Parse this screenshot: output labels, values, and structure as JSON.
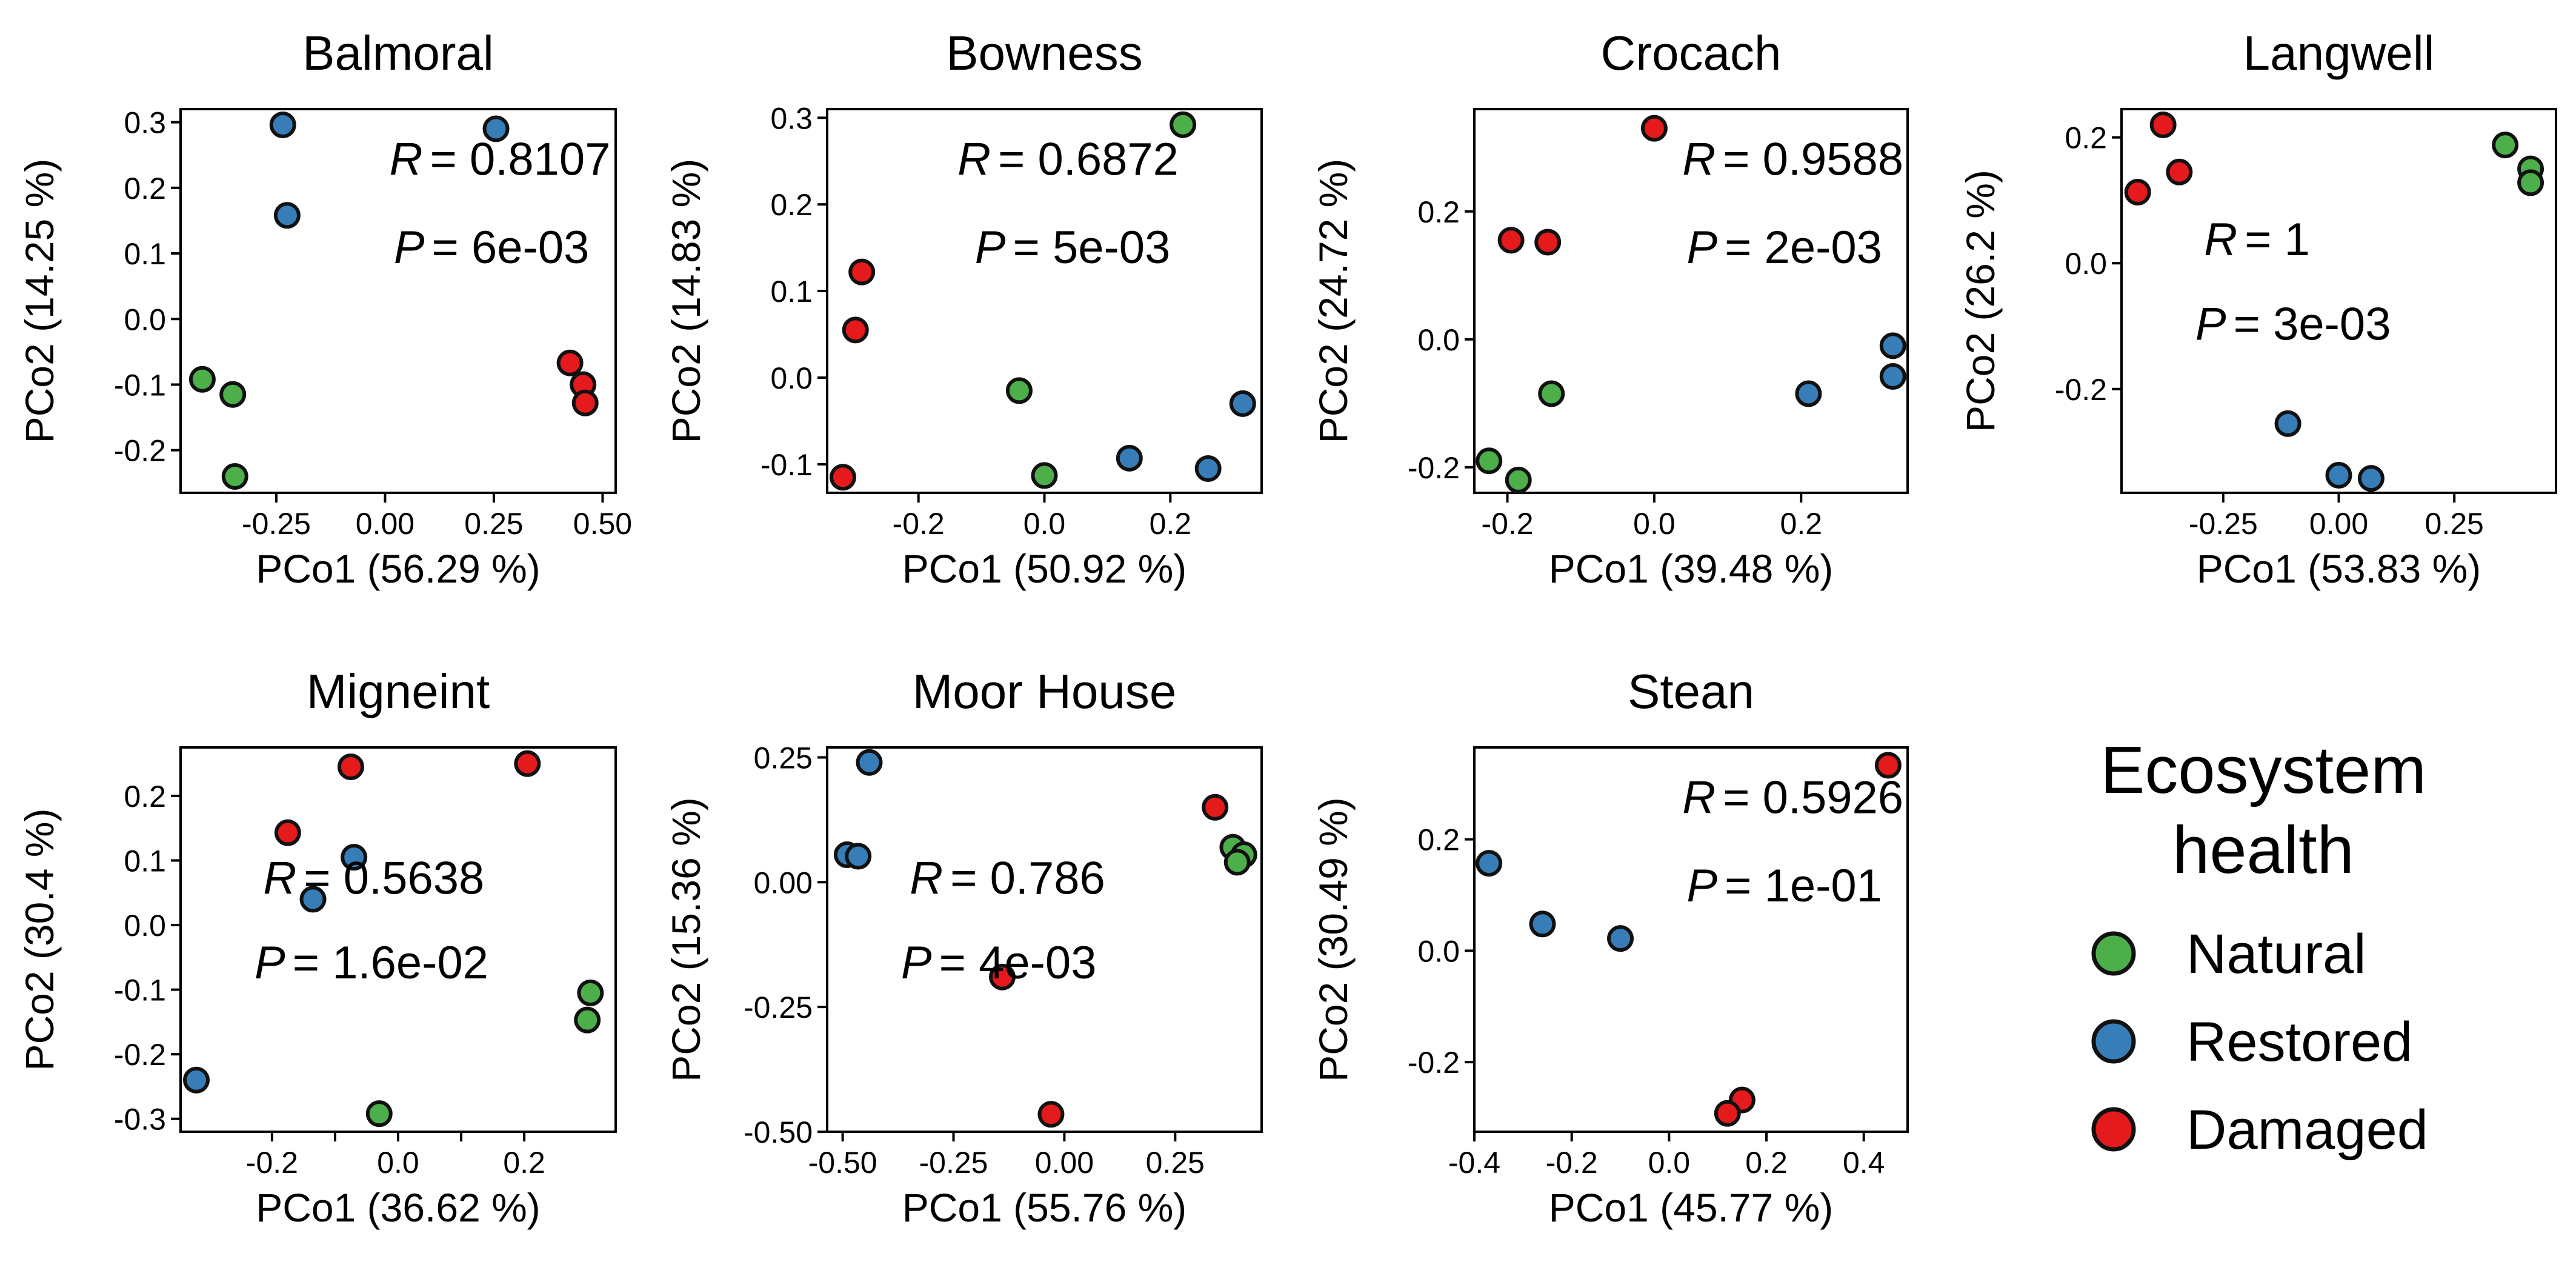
{
  "chart_data": [
    {
      "type": "scatter",
      "title": "Balmoral",
      "xlabel": "PCo1 (56.29 %)",
      "ylabel": "PCo2 (14.25 %)",
      "xlim": [
        -0.47,
        0.53
      ],
      "ylim": [
        -0.265,
        0.32
      ],
      "xticks": [
        -0.25,
        0.0,
        0.25,
        0.5
      ],
      "xtick_labels": [
        "-0.25",
        "0.00",
        "0.25",
        "0.50"
      ],
      "yticks": [
        -0.2,
        -0.1,
        0.0,
        0.1,
        0.2,
        0.3
      ],
      "ytick_labels": [
        "-0.2",
        "-0.1",
        "0.0",
        "0.1",
        "0.2",
        "0.3"
      ],
      "stats": {
        "r": "= 0.8107",
        "p": "= 6e-03"
      },
      "stats_pos": "top-right",
      "points": [
        {
          "x": -0.42,
          "y": -0.092,
          "group": "Natural"
        },
        {
          "x": -0.35,
          "y": -0.115,
          "group": "Natural"
        },
        {
          "x": -0.345,
          "y": -0.24,
          "group": "Natural"
        },
        {
          "x": -0.235,
          "y": 0.296,
          "group": "Restored"
        },
        {
          "x": -0.225,
          "y": 0.158,
          "group": "Restored"
        },
        {
          "x": 0.255,
          "y": 0.29,
          "group": "Restored"
        },
        {
          "x": 0.425,
          "y": -0.067,
          "group": "Damaged"
        },
        {
          "x": 0.455,
          "y": -0.1,
          "group": "Damaged"
        },
        {
          "x": 0.46,
          "y": -0.128,
          "group": "Damaged"
        }
      ]
    },
    {
      "type": "scatter",
      "title": "Bowness",
      "xlabel": "PCo1 (50.92 %)",
      "ylabel": "PCo2 (14.83 %)",
      "xlim": [
        -0.345,
        0.345
      ],
      "ylim": [
        -0.133,
        0.31
      ],
      "xticks": [
        -0.2,
        0.0,
        0.2
      ],
      "xtick_labels": [
        "-0.2",
        "0.0",
        "0.2"
      ],
      "yticks": [
        -0.1,
        0.0,
        0.1,
        0.2,
        0.3
      ],
      "ytick_labels": [
        "-0.1",
        "0.0",
        "0.1",
        "0.2",
        "0.3"
      ],
      "stats": {
        "r": "= 0.6872",
        "p": "= 5e-03"
      },
      "stats_pos": "top-left",
      "points": [
        {
          "x": 0.22,
          "y": 0.292,
          "group": "Natural"
        },
        {
          "x": -0.04,
          "y": -0.015,
          "group": "Natural"
        },
        {
          "x": 0.0,
          "y": -0.113,
          "group": "Natural"
        },
        {
          "x": 0.135,
          "y": -0.093,
          "group": "Restored"
        },
        {
          "x": 0.26,
          "y": -0.105,
          "group": "Restored"
        },
        {
          "x": 0.315,
          "y": -0.03,
          "group": "Restored"
        },
        {
          "x": -0.29,
          "y": 0.122,
          "group": "Damaged"
        },
        {
          "x": -0.3,
          "y": 0.055,
          "group": "Damaged"
        },
        {
          "x": -0.32,
          "y": -0.115,
          "group": "Damaged"
        }
      ]
    },
    {
      "type": "scatter",
      "title": "Crocach",
      "xlabel": "PCo1 (39.48 %)",
      "ylabel": "PCo2 (24.72 %)",
      "xlim": [
        -0.245,
        0.345
      ],
      "ylim": [
        -0.24,
        0.36
      ],
      "xticks": [
        -0.2,
        0.0,
        0.2
      ],
      "xtick_labels": [
        "-0.2",
        "0.0",
        "0.2"
      ],
      "yticks": [
        -0.2,
        0.0,
        0.2
      ],
      "ytick_labels": [
        "-0.2",
        "0.0",
        "0.2"
      ],
      "stats": {
        "r": "= 0.9588",
        "p": "= 2e-03"
      },
      "stats_pos": "top-right",
      "points": [
        {
          "x": -0.14,
          "y": -0.085,
          "group": "Natural"
        },
        {
          "x": -0.225,
          "y": -0.19,
          "group": "Natural"
        },
        {
          "x": -0.185,
          "y": -0.22,
          "group": "Natural"
        },
        {
          "x": 0.21,
          "y": -0.085,
          "group": "Restored"
        },
        {
          "x": 0.325,
          "y": -0.01,
          "group": "Restored"
        },
        {
          "x": 0.325,
          "y": -0.058,
          "group": "Restored"
        },
        {
          "x": 0.0,
          "y": 0.33,
          "group": "Damaged"
        },
        {
          "x": -0.195,
          "y": 0.155,
          "group": "Damaged"
        },
        {
          "x": -0.145,
          "y": 0.152,
          "group": "Damaged"
        }
      ]
    },
    {
      "type": "scatter",
      "title": "Langwell",
      "xlabel": "PCo1 (53.83 %)",
      "ylabel": "PCo2 (26.2 %)",
      "xlim": [
        -0.47,
        0.47
      ],
      "ylim": [
        -0.365,
        0.245
      ],
      "xticks": [
        -0.25,
        0.0,
        0.25
      ],
      "xtick_labels": [
        "-0.25",
        "0.00",
        "0.25"
      ],
      "yticks": [
        -0.2,
        0.0,
        0.2
      ],
      "ytick_labels": [
        "-0.2",
        "0.0",
        "0.2"
      ],
      "stats": {
        "r": "= 1",
        "p": "= 3e-03"
      },
      "stats_pos": "mid-left",
      "points": [
        {
          "x": 0.36,
          "y": 0.188,
          "group": "Natural"
        },
        {
          "x": 0.415,
          "y": 0.15,
          "group": "Natural"
        },
        {
          "x": 0.415,
          "y": 0.128,
          "group": "Natural"
        },
        {
          "x": -0.11,
          "y": -0.255,
          "group": "Restored"
        },
        {
          "x": 0.0,
          "y": -0.337,
          "group": "Restored"
        },
        {
          "x": 0.07,
          "y": -0.342,
          "group": "Restored"
        },
        {
          "x": -0.38,
          "y": 0.22,
          "group": "Damaged"
        },
        {
          "x": -0.345,
          "y": 0.145,
          "group": "Damaged"
        },
        {
          "x": -0.435,
          "y": 0.113,
          "group": "Damaged"
        }
      ]
    },
    {
      "type": "scatter",
      "title": "Migneint",
      "xlabel": "PCo1 (36.62 %)",
      "ylabel": "PCo2 (30.4 %)",
      "xlim": [
        -0.345,
        0.345
      ],
      "ylim": [
        -0.32,
        0.275
      ],
      "xticks": [
        -0.2,
        -0.1,
        0.0,
        0.1,
        0.2
      ],
      "xtick_labels": [
        "-0.2",
        "",
        "0.0",
        "",
        "0.2"
      ],
      "yticks": [
        -0.3,
        -0.2,
        -0.1,
        0.0,
        0.1,
        0.2
      ],
      "ytick_labels": [
        "-0.3",
        "-0.2",
        "-0.1",
        "0.0",
        "0.1",
        "0.2"
      ],
      "stats": {
        "r": "= 0.5638",
        "p": "= 1.6e-02"
      },
      "stats_pos": "mid-left",
      "points": [
        {
          "x": 0.305,
          "y": -0.105,
          "group": "Natural"
        },
        {
          "x": 0.3,
          "y": -0.147,
          "group": "Natural"
        },
        {
          "x": -0.03,
          "y": -0.292,
          "group": "Natural"
        },
        {
          "x": -0.07,
          "y": 0.105,
          "group": "Restored"
        },
        {
          "x": -0.135,
          "y": 0.04,
          "group": "Restored"
        },
        {
          "x": -0.32,
          "y": -0.24,
          "group": "Restored"
        },
        {
          "x": -0.075,
          "y": 0.245,
          "group": "Damaged"
        },
        {
          "x": 0.205,
          "y": 0.25,
          "group": "Damaged"
        },
        {
          "x": -0.175,
          "y": 0.143,
          "group": "Damaged"
        }
      ]
    },
    {
      "type": "scatter",
      "title": "Moor House",
      "xlabel": "PCo1 (55.76 %)",
      "ylabel": "PCo2 (15.36 %)",
      "xlim": [
        -0.535,
        0.445
      ],
      "ylim": [
        -0.5,
        0.27
      ],
      "xticks": [
        -0.5,
        -0.25,
        0.0,
        0.25
      ],
      "xtick_labels": [
        "-0.50",
        "-0.25",
        "0.00",
        "0.25"
      ],
      "yticks": [
        -0.5,
        -0.25,
        0.0,
        0.25
      ],
      "ytick_labels": [
        "-0.50",
        "-0.25",
        "0.00",
        "0.25"
      ],
      "stats": {
        "r": "= 0.786",
        "p": "= 4e-03"
      },
      "stats_pos": "mid-left",
      "points": [
        {
          "x": 0.38,
          "y": 0.07,
          "group": "Natural"
        },
        {
          "x": 0.405,
          "y": 0.055,
          "group": "Natural"
        },
        {
          "x": 0.39,
          "y": 0.04,
          "group": "Natural"
        },
        {
          "x": -0.44,
          "y": 0.24,
          "group": "Restored"
        },
        {
          "x": -0.49,
          "y": 0.055,
          "group": "Restored"
        },
        {
          "x": -0.465,
          "y": 0.052,
          "group": "Restored"
        },
        {
          "x": 0.34,
          "y": 0.15,
          "group": "Damaged"
        },
        {
          "x": -0.14,
          "y": -0.19,
          "group": "Damaged"
        },
        {
          "x": -0.03,
          "y": -0.465,
          "group": "Damaged"
        }
      ]
    },
    {
      "type": "scatter",
      "title": "Stean",
      "xlabel": "PCo1 (45.77 %)",
      "ylabel": "PCo2 (30.49 %)",
      "xlim": [
        -0.4,
        0.49
      ],
      "ylim": [
        -0.325,
        0.365
      ],
      "xticks": [
        -0.4,
        -0.2,
        0.0,
        0.2,
        0.4
      ],
      "xtick_labels": [
        "-0.4",
        "-0.2",
        "0.0",
        "0.2",
        "0.4"
      ],
      "yticks": [
        -0.2,
        0.0,
        0.2
      ],
      "ytick_labels": [
        "-0.2",
        "0.0",
        "0.2"
      ],
      "stats": {
        "r": "= 0.5926",
        "p": "= 1e-01"
      },
      "stats_pos": "top-right",
      "points": [
        {
          "x": -0.37,
          "y": 0.157,
          "group": "Restored"
        },
        {
          "x": -0.26,
          "y": 0.048,
          "group": "Restored"
        },
        {
          "x": -0.1,
          "y": 0.022,
          "group": "Restored"
        },
        {
          "x": 0.45,
          "y": 0.333,
          "group": "Damaged"
        },
        {
          "x": 0.15,
          "y": -0.268,
          "group": "Damaged"
        },
        {
          "x": 0.12,
          "y": -0.292,
          "group": "Damaged"
        }
      ]
    }
  ],
  "legend": {
    "title_line1": "Ecosystem",
    "title_line2": "health",
    "items": [
      {
        "label": "Natural",
        "color": "#4daf4a"
      },
      {
        "label": "Restored",
        "color": "#377eb8"
      },
      {
        "label": "Damaged",
        "color": "#e41a1c"
      }
    ]
  },
  "stat_letters": {
    "r": "R",
    "p": "P"
  },
  "colors": {
    "Natural": "#4daf4a",
    "Restored": "#377eb8",
    "Damaged": "#e41a1c",
    "outline": "#111111"
  }
}
